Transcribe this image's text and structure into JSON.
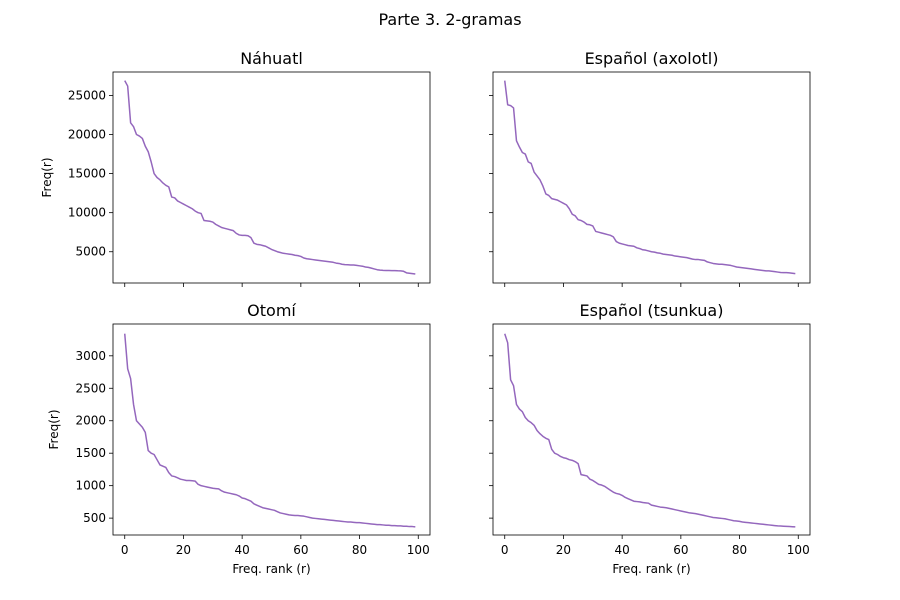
{
  "suptitle": "Parte 3. 2-gramas",
  "line_color": "#9467bd",
  "chart_data": [
    {
      "type": "line",
      "title": "Náhuatl",
      "xlabel": "",
      "ylabel": "Freq(r)",
      "xlim": [
        -4,
        104
      ],
      "ylim": [
        1000,
        28000
      ],
      "xticks": [
        0,
        20,
        40,
        60,
        80,
        100
      ],
      "xtick_labels_visible": false,
      "yticks": [
        5000,
        10000,
        15000,
        20000,
        25000
      ],
      "ytick_labels": [
        "5000",
        "10000",
        "15000",
        "20000",
        "25000"
      ],
      "ytick_labels_visible": true,
      "grid": false,
      "series": [
        {
          "values": [
            26900,
            26200,
            21500,
            21000,
            20000,
            19800,
            19500,
            18500,
            17800,
            16500,
            15000,
            14500,
            14200,
            13800,
            13500,
            13300,
            12000,
            11900,
            11500,
            11300,
            11100,
            10900,
            10700,
            10500,
            10200,
            10000,
            9900,
            9000,
            8950,
            8900,
            8800,
            8500,
            8300,
            8100,
            8000,
            7900,
            7800,
            7700,
            7350,
            7150,
            7100,
            7100,
            7050,
            6800,
            6100,
            5950,
            5900,
            5800,
            5700,
            5500,
            5300,
            5150,
            5000,
            4900,
            4800,
            4750,
            4700,
            4650,
            4550,
            4500,
            4400,
            4200,
            4100,
            4050,
            4000,
            3950,
            3900,
            3850,
            3800,
            3750,
            3700,
            3650,
            3550,
            3500,
            3400,
            3350,
            3330,
            3310,
            3300,
            3250,
            3200,
            3150,
            3050,
            3000,
            2900,
            2800,
            2700,
            2650,
            2620,
            2600,
            2600,
            2590,
            2580,
            2560,
            2550,
            2500,
            2300,
            2250,
            2200,
            2150
          ]
        }
      ]
    },
    {
      "type": "line",
      "title": "Español (axolotl)",
      "xlabel": "",
      "ylabel": "",
      "xlim": [
        -4,
        104
      ],
      "ylim": [
        1000,
        28000
      ],
      "xticks": [
        0,
        20,
        40,
        60,
        80,
        100
      ],
      "xtick_labels_visible": false,
      "yticks": [
        5000,
        10000,
        15000,
        20000,
        25000
      ],
      "ytick_labels_visible": false,
      "grid": false,
      "series": [
        {
          "values": [
            26900,
            23800,
            23700,
            23400,
            19200,
            18400,
            17700,
            17500,
            16500,
            16300,
            15200,
            14700,
            14200,
            13400,
            12400,
            12200,
            11800,
            11700,
            11600,
            11400,
            11200,
            11000,
            10500,
            9800,
            9600,
            9100,
            9000,
            8800,
            8500,
            8450,
            8300,
            7600,
            7500,
            7400,
            7300,
            7200,
            7100,
            6900,
            6300,
            6100,
            6000,
            5900,
            5800,
            5750,
            5700,
            5500,
            5400,
            5250,
            5200,
            5100,
            5000,
            4950,
            4850,
            4800,
            4700,
            4650,
            4600,
            4550,
            4450,
            4400,
            4350,
            4300,
            4250,
            4150,
            4050,
            4000,
            4000,
            3950,
            3900,
            3700,
            3600,
            3500,
            3450,
            3400,
            3400,
            3350,
            3300,
            3250,
            3150,
            3050,
            3000,
            2950,
            2900,
            2850,
            2800,
            2750,
            2700,
            2650,
            2600,
            2550,
            2550,
            2500,
            2450,
            2400,
            2350,
            2330,
            2320,
            2300,
            2250,
            2200
          ]
        }
      ]
    },
    {
      "type": "line",
      "title": "Otomí",
      "xlabel": "Freq. rank (r)",
      "ylabel": "Freq(r)",
      "xlim": [
        -4,
        104
      ],
      "ylim": [
        240,
        3490
      ],
      "xticks": [
        0,
        20,
        40,
        60,
        80,
        100
      ],
      "xtick_labels": [
        "0",
        "20",
        "40",
        "60",
        "80",
        "100"
      ],
      "xtick_labels_visible": true,
      "yticks": [
        500,
        1000,
        1500,
        2000,
        2500,
        3000
      ],
      "ytick_labels": [
        "500",
        "1000",
        "1500",
        "2000",
        "2500",
        "3000"
      ],
      "ytick_labels_visible": true,
      "grid": false,
      "series": [
        {
          "values": [
            3340,
            2800,
            2650,
            2250,
            2000,
            1950,
            1900,
            1820,
            1540,
            1500,
            1480,
            1400,
            1320,
            1300,
            1280,
            1200,
            1150,
            1140,
            1120,
            1100,
            1090,
            1080,
            1080,
            1075,
            1070,
            1020,
            1000,
            990,
            980,
            970,
            960,
            955,
            950,
            920,
            900,
            890,
            880,
            870,
            860,
            840,
            810,
            800,
            780,
            760,
            720,
            700,
            680,
            660,
            650,
            640,
            630,
            620,
            600,
            580,
            570,
            560,
            550,
            545,
            540,
            540,
            535,
            530,
            520,
            510,
            500,
            495,
            490,
            485,
            480,
            475,
            470,
            465,
            460,
            455,
            450,
            445,
            440,
            440,
            435,
            430,
            430,
            425,
            420,
            415,
            410,
            405,
            400,
            400,
            395,
            390,
            390,
            385,
            385,
            380,
            380,
            375,
            375,
            370,
            370,
            365
          ]
        }
      ]
    },
    {
      "type": "line",
      "title": "Español (tsunkua)",
      "xlabel": "Freq. rank (r)",
      "ylabel": "",
      "xlim": [
        -4,
        104
      ],
      "ylim": [
        240,
        3490
      ],
      "xticks": [
        0,
        20,
        40,
        60,
        80,
        100
      ],
      "xtick_labels": [
        "0",
        "20",
        "40",
        "60",
        "80",
        "100"
      ],
      "xtick_labels_visible": true,
      "yticks": [
        500,
        1000,
        1500,
        2000,
        2500,
        3000
      ],
      "ytick_labels_visible": false,
      "grid": false,
      "series": [
        {
          "values": [
            3340,
            3200,
            2630,
            2540,
            2250,
            2180,
            2140,
            2050,
            2000,
            1970,
            1930,
            1850,
            1800,
            1760,
            1730,
            1710,
            1560,
            1500,
            1480,
            1450,
            1430,
            1420,
            1400,
            1390,
            1370,
            1340,
            1170,
            1160,
            1150,
            1100,
            1080,
            1050,
            1020,
            1010,
            990,
            960,
            930,
            900,
            880,
            870,
            850,
            820,
            800,
            780,
            760,
            755,
            750,
            740,
            735,
            730,
            700,
            690,
            680,
            670,
            665,
            660,
            650,
            640,
            630,
            620,
            610,
            600,
            590,
            580,
            575,
            570,
            560,
            550,
            540,
            530,
            520,
            510,
            505,
            500,
            495,
            490,
            480,
            470,
            460,
            455,
            450,
            440,
            435,
            430,
            425,
            420,
            415,
            410,
            405,
            400,
            395,
            390,
            385,
            380,
            378,
            375,
            372,
            370,
            368,
            365
          ]
        }
      ]
    }
  ]
}
